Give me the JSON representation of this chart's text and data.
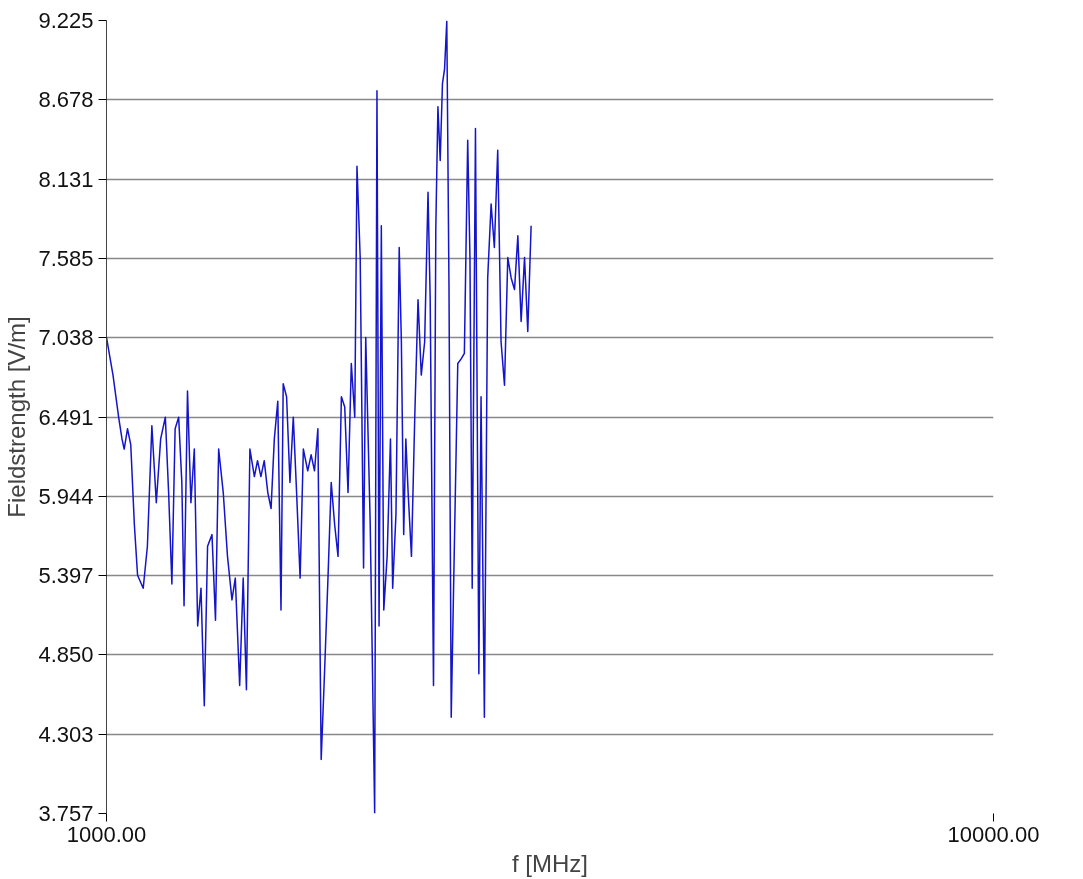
{
  "chart_data": {
    "type": "line",
    "xlabel": "f [MHz]",
    "ylabel": "Fieldstrength [V/m]",
    "log": "x",
    "grid": "y",
    "line_style": "solid",
    "xlim": [
      1000,
      10000
    ],
    "xticks": [
      {
        "value": 1000,
        "label": "1000.00"
      },
      {
        "value": 10000,
        "label": "10000.00"
      }
    ],
    "ylim": [
      3.757,
      9.225
    ],
    "yticks": [
      3.757,
      4.303,
      {
        "value": 4.85,
        "label": "4.850"
      },
      5.397,
      5.944,
      6.491,
      7.038,
      7.585,
      8.131,
      8.678,
      9.225
    ],
    "series": [
      {
        "color": "#1414c8",
        "x": [
          1000,
          1017,
          1032,
          1041,
          1047,
          1056,
          1065,
          1075,
          1084,
          1100,
          1112,
          1125,
          1138,
          1151,
          1165,
          1175,
          1185,
          1195,
          1206,
          1216,
          1223,
          1234,
          1245,
          1256,
          1267,
          1278,
          1289,
          1300,
          1315,
          1327,
          1338,
          1354,
          1369,
          1385,
          1397,
          1413,
          1426,
          1438,
          1451,
          1468,
          1480,
          1493,
          1506,
          1520,
          1533,
          1546,
          1560,
          1573,
          1582,
          1596,
          1610,
          1624,
          1638,
          1653,
          1667,
          1686,
          1701,
          1716,
          1731,
          1746,
          1761,
          1777,
          1792,
          1808,
          1824,
          1840,
          1856,
          1872,
          1888,
          1905,
          1916,
          1932,
          1949,
          1960,
          1983,
          2006,
          2018,
          2029,
          2041,
          2054,
          2072,
          2090,
          2102,
          2120,
          2138,
          2150,
          2163,
          2175,
          2188,
          2207,
          2226,
          2245,
          2264,
          2284,
          2304,
          2317,
          2337,
          2351,
          2364,
          2378,
          2392,
          2405,
          2419,
          2433,
          2447,
          2467,
          2489,
          2510,
          2532,
          2554,
          2569,
          2584,
          2606,
          2629,
          2644,
          2667,
          2690,
          2714,
          2737,
          2761,
          2785,
          2810,
          2834,
          2859,
          2884,
          2909,
          2934,
          2960,
          2985,
          3011
        ],
        "values": [
          7.04,
          6.78,
          6.49,
          6.34,
          6.27,
          6.41,
          6.3,
          5.75,
          5.4,
          5.31,
          5.6,
          6.43,
          5.9,
          6.34,
          6.49,
          5.97,
          5.34,
          6.41,
          6.49,
          6.04,
          5.19,
          6.67,
          5.9,
          6.27,
          5.05,
          5.31,
          4.5,
          5.6,
          5.68,
          5.09,
          6.27,
          5.97,
          5.53,
          5.23,
          5.38,
          4.64,
          5.38,
          4.61,
          6.27,
          6.08,
          6.19,
          6.08,
          6.19,
          5.97,
          5.86,
          6.34,
          6.6,
          5.16,
          6.72,
          6.63,
          6.04,
          6.49,
          5.97,
          5.38,
          6.27,
          6.12,
          6.23,
          6.12,
          6.41,
          4.13,
          4.72,
          5.38,
          6.04,
          5.75,
          5.53,
          6.63,
          6.56,
          5.97,
          6.86,
          6.49,
          8.22,
          7.59,
          5.45,
          7.04,
          5.75,
          3.76,
          8.74,
          5.05,
          7.81,
          5.16,
          5.53,
          6.34,
          5.31,
          5.82,
          7.66,
          7.01,
          5.68,
          6.34,
          5.97,
          5.53,
          6.49,
          7.3,
          6.78,
          7.01,
          8.04,
          7.3,
          4.64,
          7.79,
          8.63,
          8.26,
          8.79,
          8.89,
          9.22,
          7.37,
          4.42,
          5.6,
          6.86,
          6.89,
          6.93,
          8.4,
          7.59,
          5.31,
          8.48,
          4.72,
          6.63,
          4.42,
          7.45,
          7.96,
          7.66,
          8.33,
          7.01,
          6.71,
          7.59,
          7.45,
          7.37,
          7.74,
          7.15,
          7.59,
          7.08,
          7.81
        ]
      }
    ]
  }
}
